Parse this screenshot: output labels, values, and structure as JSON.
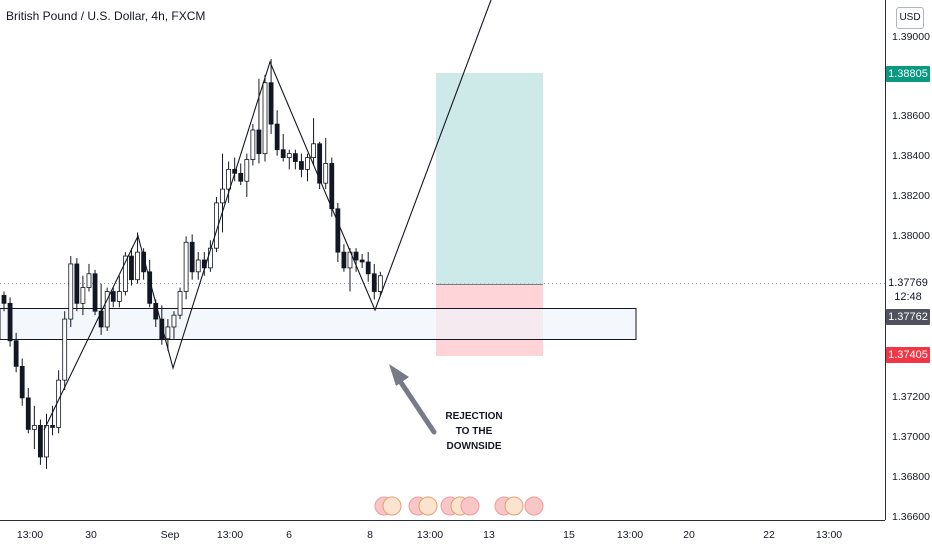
{
  "header": {
    "title": "British Pound / U.S. Dollar, 4h, FXCM",
    "currency": "USD"
  },
  "chart_data": {
    "type": "candlestick",
    "ylim": [
      1.3654,
      1.3918
    ],
    "y_ticks": [
      "1.39000",
      "1.38600",
      "1.38400",
      "1.38200",
      "1.38000",
      "1.37200",
      "1.37000",
      "1.36800",
      "1.36600"
    ],
    "x_ticks": [
      "13:00",
      "30",
      "Sep",
      "13:00",
      "6",
      "8",
      "13:00",
      "13",
      "15",
      "13:00",
      "20",
      "22",
      "13:00"
    ],
    "price_labels": {
      "target": "1.38805",
      "current": "1.37769",
      "countdown": "12:48",
      "zone": "1.37762",
      "stop": "1.37405"
    },
    "annotation": [
      "REJECTION",
      "TO THE",
      "DOWNSIDE"
    ],
    "candles": [
      [
        1.3768,
        1.377,
        1.376,
        1.3764
      ],
      [
        1.3764,
        1.3767,
        1.3742,
        1.3745
      ],
      [
        1.3745,
        1.3749,
        1.3729,
        1.3732
      ],
      [
        1.3732,
        1.3736,
        1.3712,
        1.3716
      ],
      [
        1.3716,
        1.3721,
        1.3698,
        1.37
      ],
      [
        1.37,
        1.3712,
        1.369,
        1.3702
      ],
      [
        1.3702,
        1.3705,
        1.3682,
        1.3686
      ],
      [
        1.3686,
        1.3708,
        1.368,
        1.3702
      ],
      [
        1.3702,
        1.3712,
        1.3697,
        1.3701
      ],
      [
        1.3701,
        1.373,
        1.3698,
        1.3725
      ],
      [
        1.3725,
        1.376,
        1.372,
        1.3756
      ],
      [
        1.3756,
        1.3788,
        1.3752,
        1.3784
      ],
      [
        1.3784,
        1.3787,
        1.376,
        1.3764
      ],
      [
        1.3764,
        1.3778,
        1.3758,
        1.3772
      ],
      [
        1.3772,
        1.3784,
        1.377,
        1.3779
      ],
      [
        1.3779,
        1.3781,
        1.3758,
        1.376
      ],
      [
        1.376,
        1.3774,
        1.3748,
        1.3752
      ],
      [
        1.3752,
        1.3772,
        1.375,
        1.377
      ],
      [
        1.377,
        1.3772,
        1.3762,
        1.3765
      ],
      [
        1.3765,
        1.3778,
        1.3762,
        1.377
      ],
      [
        1.377,
        1.379,
        1.3768,
        1.3788
      ],
      [
        1.3788,
        1.3792,
        1.3773,
        1.3776
      ],
      [
        1.3776,
        1.38,
        1.3774,
        1.379
      ],
      [
        1.379,
        1.3792,
        1.3776,
        1.378
      ],
      [
        1.378,
        1.3786,
        1.3762,
        1.3764
      ],
      [
        1.3764,
        1.3766,
        1.3752,
        1.3756
      ],
      [
        1.3756,
        1.3763,
        1.3743,
        1.3746
      ],
      [
        1.3746,
        1.3756,
        1.374,
        1.3752
      ],
      [
        1.3752,
        1.376,
        1.3746,
        1.3758
      ],
      [
        1.3758,
        1.3772,
        1.3756,
        1.377
      ],
      [
        1.377,
        1.3798,
        1.3766,
        1.3795
      ],
      [
        1.3795,
        1.3799,
        1.3776,
        1.378
      ],
      [
        1.378,
        1.379,
        1.3776,
        1.3786
      ],
      [
        1.3786,
        1.379,
        1.3778,
        1.3782
      ],
      [
        1.3782,
        1.3796,
        1.378,
        1.3792
      ],
      [
        1.3792,
        1.3818,
        1.379,
        1.3815
      ],
      [
        1.3815,
        1.384,
        1.38,
        1.3822
      ],
      [
        1.3822,
        1.3836,
        1.3815,
        1.3832
      ],
      [
        1.3832,
        1.3838,
        1.3826,
        1.383
      ],
      [
        1.383,
        1.3835,
        1.3824,
        1.3826
      ],
      [
        1.3826,
        1.384,
        1.3818,
        1.3837
      ],
      [
        1.3837,
        1.3855,
        1.3834,
        1.3852
      ],
      [
        1.3852,
        1.3878,
        1.3835,
        1.384
      ],
      [
        1.384,
        1.388,
        1.3836,
        1.3876
      ],
      [
        1.3876,
        1.3888,
        1.385,
        1.3855
      ],
      [
        1.3855,
        1.3862,
        1.3839,
        1.3842
      ],
      [
        1.3842,
        1.385,
        1.3836,
        1.3838
      ],
      [
        1.3838,
        1.3842,
        1.3832,
        1.384
      ],
      [
        1.384,
        1.3842,
        1.3832,
        1.3836
      ],
      [
        1.3836,
        1.384,
        1.3828,
        1.3832
      ],
      [
        1.3832,
        1.384,
        1.3826,
        1.3838
      ],
      [
        1.3838,
        1.3858,
        1.3834,
        1.3845
      ],
      [
        1.3845,
        1.3846,
        1.3822,
        1.3825
      ],
      [
        1.3825,
        1.3848,
        1.3822,
        1.3835
      ],
      [
        1.3835,
        1.3838,
        1.3808,
        1.3812
      ],
      [
        1.3812,
        1.3815,
        1.3785,
        1.379
      ],
      [
        1.379,
        1.3794,
        1.378,
        1.3782
      ],
      [
        1.3782,
        1.3792,
        1.377,
        1.379
      ],
      [
        1.379,
        1.3792,
        1.378,
        1.3786
      ],
      [
        1.3786,
        1.3789,
        1.3782,
        1.3785
      ],
      [
        1.3785,
        1.379,
        1.3775,
        1.3779
      ],
      [
        1.3779,
        1.3784,
        1.3766,
        1.377
      ],
      [
        1.377,
        1.378,
        1.3768,
        1.3778
      ]
    ]
  }
}
